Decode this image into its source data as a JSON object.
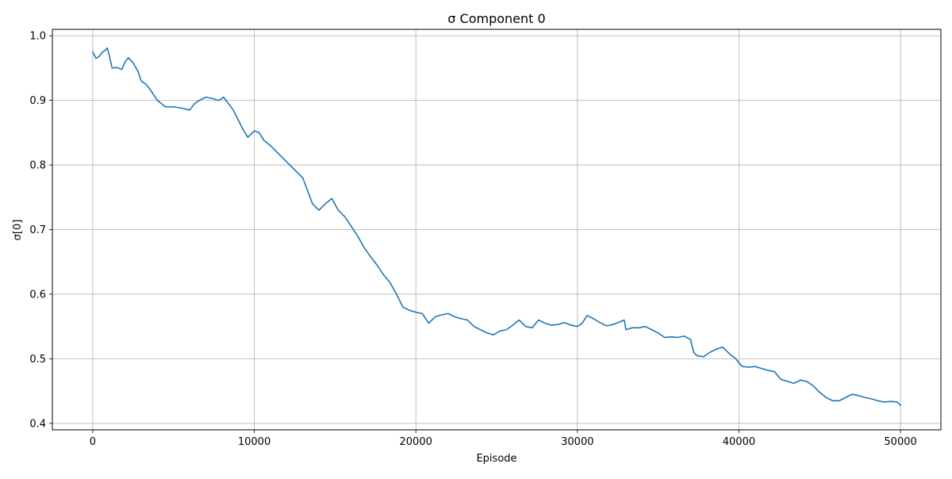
{
  "chart_data": {
    "type": "line",
    "title": "σ Component 0",
    "xlabel": "Episode",
    "ylabel": "σ[0]",
    "xlim": [
      -2500,
      52500
    ],
    "ylim": [
      0.39,
      1.01
    ],
    "xticks": [
      0,
      10000,
      20000,
      30000,
      40000,
      50000
    ],
    "yticks": [
      0.4,
      0.5,
      0.6,
      0.7,
      0.8,
      0.9,
      1.0
    ],
    "xtick_labels": [
      "0",
      "10000",
      "20000",
      "30000",
      "40000",
      "50000"
    ],
    "ytick_labels": [
      "0.4",
      "0.5",
      "0.6",
      "0.7",
      "0.8",
      "0.9",
      "1.0"
    ],
    "grid": true,
    "line_color": "#1f77b4",
    "series": [
      {
        "x": [
          0,
          200,
          400,
          600,
          800,
          900,
          1000,
          1200,
          1500,
          1800,
          2000,
          2200,
          2500,
          2800,
          3000,
          3300,
          3600,
          4000,
          4500,
          5000,
          5500,
          6000,
          6300,
          6600,
          7000,
          7400,
          7800,
          8100,
          8400,
          8700,
          9000,
          9300,
          9600,
          10000,
          10300,
          10600,
          11000,
          11400,
          11800,
          12200,
          12600,
          13000,
          13300,
          13600,
          14000,
          14400,
          14800,
          15200,
          15600,
          16000,
          16400,
          16800,
          17200,
          17600,
          18000,
          18400,
          18800,
          19200,
          19600,
          20000,
          20400,
          20800,
          21200,
          21600,
          22000,
          22400,
          22800,
          23200,
          23600,
          24000,
          24400,
          24800,
          25200,
          25600,
          26000,
          26400,
          26800,
          27200,
          27600,
          28000,
          28400,
          28800,
          29200,
          29600,
          30000,
          30300,
          30600,
          31000,
          31400,
          31800,
          32200,
          32600,
          32900,
          33000,
          33400,
          33800,
          34200,
          34600,
          35000,
          35400,
          35800,
          36200,
          36600,
          37000,
          37200,
          37400,
          37800,
          38200,
          38600,
          39000,
          39400,
          39800,
          40200,
          40600,
          41000,
          41400,
          41800,
          42200,
          42600,
          43000,
          43400,
          43800,
          44200,
          44600,
          45000,
          45400,
          45800,
          46200,
          46600,
          47000,
          47400,
          47800,
          48200,
          48600,
          49000,
          49400,
          49800,
          50000
        ],
        "y": [
          0.975,
          0.965,
          0.968,
          0.975,
          0.978,
          0.981,
          0.972,
          0.95,
          0.951,
          0.948,
          0.96,
          0.966,
          0.958,
          0.945,
          0.93,
          0.925,
          0.915,
          0.9,
          0.89,
          0.89,
          0.888,
          0.885,
          0.895,
          0.9,
          0.905,
          0.903,
          0.9,
          0.905,
          0.895,
          0.885,
          0.87,
          0.855,
          0.843,
          0.853,
          0.85,
          0.838,
          0.83,
          0.82,
          0.81,
          0.8,
          0.79,
          0.78,
          0.76,
          0.74,
          0.73,
          0.74,
          0.748,
          0.73,
          0.72,
          0.705,
          0.69,
          0.672,
          0.658,
          0.645,
          0.63,
          0.618,
          0.6,
          0.58,
          0.575,
          0.572,
          0.57,
          0.555,
          0.565,
          0.568,
          0.57,
          0.565,
          0.562,
          0.56,
          0.55,
          0.545,
          0.54,
          0.537,
          0.543,
          0.545,
          0.552,
          0.56,
          0.55,
          0.548,
          0.56,
          0.555,
          0.552,
          0.553,
          0.556,
          0.552,
          0.55,
          0.555,
          0.567,
          0.562,
          0.556,
          0.551,
          0.553,
          0.557,
          0.56,
          0.545,
          0.548,
          0.548,
          0.55,
          0.545,
          0.54,
          0.533,
          0.534,
          0.533,
          0.535,
          0.53,
          0.51,
          0.505,
          0.503,
          0.51,
          0.515,
          0.518,
          0.508,
          0.5,
          0.488,
          0.487,
          0.488,
          0.485,
          0.482,
          0.48,
          0.468,
          0.465,
          0.462,
          0.467,
          0.465,
          0.458,
          0.448,
          0.44,
          0.435,
          0.435,
          0.44,
          0.445,
          0.443,
          0.44,
          0.438,
          0.435,
          0.433,
          0.434,
          0.433,
          0.428
        ]
      }
    ]
  }
}
